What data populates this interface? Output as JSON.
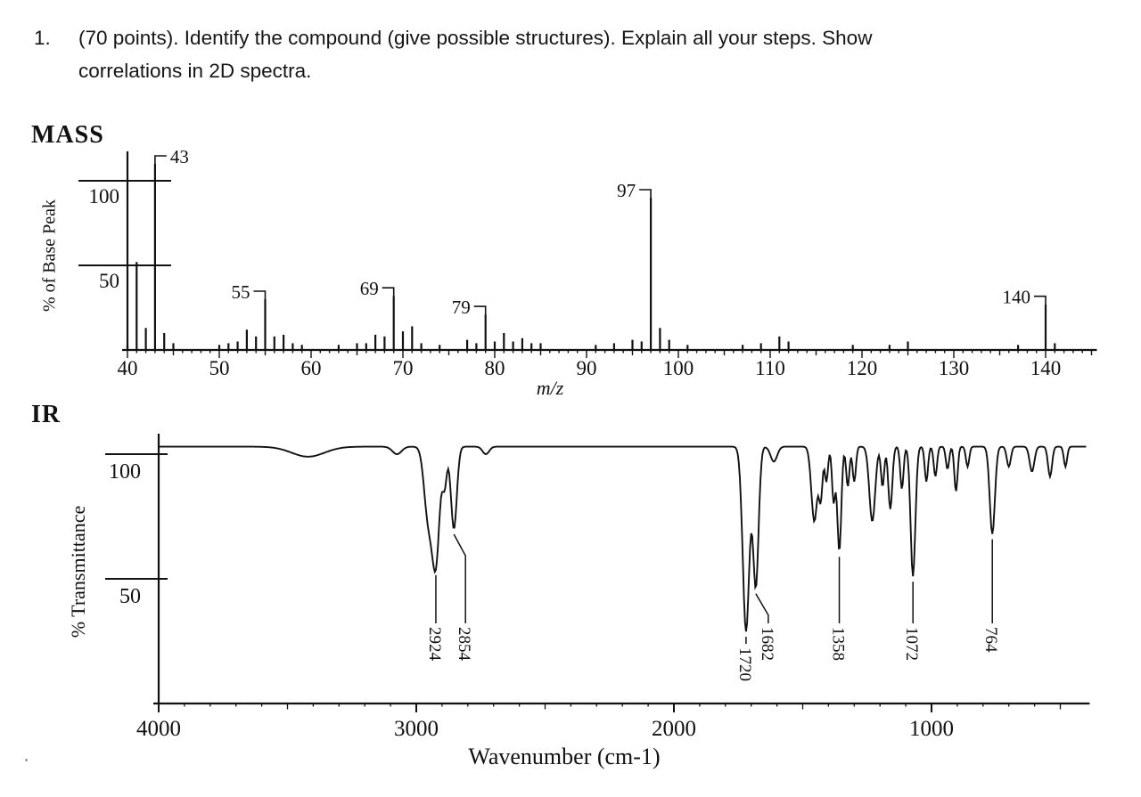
{
  "page": {
    "background": "#ffffff",
    "ink": "#111111"
  },
  "question": {
    "number": "1.",
    "line1": "(70 points). Identify the compound (give possible structures). Explain all your steps. Show",
    "line2": "correlations in 2D spectra."
  },
  "chart_data": [
    {
      "type": "bar",
      "name": "mass-spectrum",
      "title": "MASS",
      "xlabel": "m/z",
      "ylabel": "% of Base Peak",
      "x_range": [
        40,
        145
      ],
      "x_ticks": [
        40,
        50,
        60,
        70,
        80,
        90,
        100,
        110,
        120,
        130,
        140
      ],
      "y_ticks": [
        50,
        100
      ],
      "grid": false,
      "peaks": [
        [
          40,
          3
        ],
        [
          41,
          52
        ],
        [
          42,
          13
        ],
        [
          43,
          110
        ],
        [
          44,
          10
        ],
        [
          45,
          4
        ],
        [
          50,
          3
        ],
        [
          51,
          4
        ],
        [
          52,
          5
        ],
        [
          53,
          12
        ],
        [
          54,
          8
        ],
        [
          55,
          30
        ],
        [
          56,
          8
        ],
        [
          57,
          9
        ],
        [
          58,
          4
        ],
        [
          59,
          3
        ],
        [
          63,
          3
        ],
        [
          65,
          4
        ],
        [
          66,
          4
        ],
        [
          67,
          9
        ],
        [
          68,
          8
        ],
        [
          69,
          32
        ],
        [
          70,
          11
        ],
        [
          71,
          14
        ],
        [
          72,
          4
        ],
        [
          74,
          3
        ],
        [
          77,
          6
        ],
        [
          78,
          4
        ],
        [
          79,
          21
        ],
        [
          80,
          5
        ],
        [
          81,
          10
        ],
        [
          82,
          5
        ],
        [
          83,
          7
        ],
        [
          84,
          4
        ],
        [
          85,
          4
        ],
        [
          91,
          3
        ],
        [
          93,
          4
        ],
        [
          95,
          6
        ],
        [
          96,
          5
        ],
        [
          97,
          90
        ],
        [
          98,
          13
        ],
        [
          99,
          6
        ],
        [
          101,
          3
        ],
        [
          107,
          3
        ],
        [
          109,
          4
        ],
        [
          111,
          8
        ],
        [
          112,
          5
        ],
        [
          119,
          3
        ],
        [
          123,
          3
        ],
        [
          125,
          5
        ],
        [
          137,
          3
        ],
        [
          140,
          27
        ],
        [
          141,
          4
        ]
      ],
      "labeled_peaks": [
        {
          "mz": 43,
          "label": "43",
          "side": "right"
        },
        {
          "mz": 55,
          "label": "55",
          "side": "left"
        },
        {
          "mz": 69,
          "label": "69",
          "side": "left"
        },
        {
          "mz": 79,
          "label": "79",
          "side": "left"
        },
        {
          "mz": 97,
          "label": "97",
          "side": "left"
        },
        {
          "mz": 140,
          "label": "140",
          "side": "left"
        }
      ]
    },
    {
      "type": "line",
      "name": "ir-spectrum",
      "title": "IR",
      "xlabel": "Wavenumber (cm-1)",
      "ylabel": "% Transmittance",
      "x_range": [
        4000,
        400
      ],
      "x_ticks": [
        4000,
        3000,
        2000,
        1000
      ],
      "y_ticks": [
        50,
        100
      ],
      "grid": false,
      "baseline_transmittance": 103,
      "bands": [
        [
          3420,
          4,
          90
        ],
        [
          3075,
          3,
          25
        ],
        [
          2954,
          28,
          22
        ],
        [
          2924,
          45,
          20
        ],
        [
          2890,
          15,
          12
        ],
        [
          2854,
          33,
          16
        ],
        [
          2730,
          3,
          18
        ],
        [
          1720,
          74,
          18
        ],
        [
          1682,
          56,
          15
        ],
        [
          1612,
          6,
          18
        ],
        [
          1455,
          30,
          16
        ],
        [
          1430,
          20,
          10
        ],
        [
          1408,
          14,
          9
        ],
        [
          1380,
          22,
          9
        ],
        [
          1358,
          42,
          11
        ],
        [
          1325,
          16,
          9
        ],
        [
          1300,
          14,
          9
        ],
        [
          1230,
          30,
          16
        ],
        [
          1190,
          16,
          9
        ],
        [
          1160,
          25,
          11
        ],
        [
          1115,
          17,
          9
        ],
        [
          1072,
          52,
          13
        ],
        [
          1020,
          14,
          9
        ],
        [
          985,
          12,
          9
        ],
        [
          938,
          9,
          9
        ],
        [
          905,
          18,
          9
        ],
        [
          860,
          8,
          9
        ],
        [
          764,
          35,
          14
        ],
        [
          700,
          8,
          11
        ],
        [
          610,
          10,
          13
        ],
        [
          540,
          12,
          11
        ],
        [
          480,
          8,
          9
        ]
      ],
      "labeled_peaks": [
        {
          "wavenumber": 2924,
          "label": "2924",
          "label_dx": 0
        },
        {
          "wavenumber": 2854,
          "label": "2854",
          "label_dx": 13
        },
        {
          "wavenumber": 1720,
          "label": "1720",
          "label_dx": 0
        },
        {
          "wavenumber": 1682,
          "label": "1682",
          "label_dx": 14
        },
        {
          "wavenumber": 1358,
          "label": "1358",
          "label_dx": 0
        },
        {
          "wavenumber": 1072,
          "label": "1072",
          "label_dx": 0
        },
        {
          "wavenumber": 764,
          "label": "764",
          "label_dx": 0
        }
      ]
    }
  ]
}
